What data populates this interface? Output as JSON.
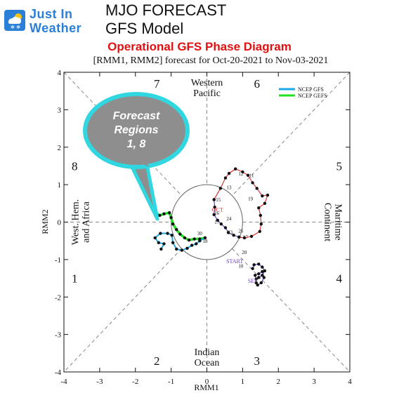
{
  "header": {
    "logo_line1": "Just In",
    "logo_line2": "Weather",
    "title_line1": "MJO FORECAST",
    "title_line2": "GFS Model",
    "subtitle": "Operational GFS Phase Diagram",
    "logo_icon": "sun-cloud-snow-icon"
  },
  "chart_data": {
    "type": "scatter",
    "title": "[RMM1, RMM2] forecast for Oct-20-2021 to Nov-03-2021",
    "xlabel": "RMM1",
    "ylabel": "RMM2",
    "xlim": [
      -4,
      4
    ],
    "ylim": [
      -4,
      4
    ],
    "x_ticks": [
      "-4",
      "-3",
      "-2",
      "-1",
      "0",
      "1",
      "2",
      "3",
      "4"
    ],
    "y_ticks": [
      "-4",
      "-3",
      "-2",
      "-1",
      "0",
      "1",
      "2",
      "3",
      "4"
    ],
    "grid": false,
    "legend_position": "top-right",
    "legend": [
      {
        "name": "NCEP GFS",
        "color": "#1aa9e6"
      },
      {
        "name": "NCEP GEFS",
        "color": "#22e022"
      }
    ],
    "phases": [
      {
        "label": "7",
        "x": -1.4,
        "y": 3.7
      },
      {
        "label": "6",
        "x": 1.4,
        "y": 3.7
      },
      {
        "label": "5",
        "x": 3.7,
        "y": 1.5
      },
      {
        "label": "4",
        "x": 3.7,
        "y": -1.5
      },
      {
        "label": "3",
        "x": 1.4,
        "y": -3.7
      },
      {
        "label": "2",
        "x": -1.4,
        "y": -3.7
      },
      {
        "label": "1",
        "x": -3.7,
        "y": -1.5
      },
      {
        "label": "8",
        "x": -3.7,
        "y": 1.5
      }
    ],
    "regions": [
      {
        "lines": [
          "Western",
          "Pacific"
        ],
        "x": 0,
        "y": 3.6,
        "rotate": 0
      },
      {
        "lines": [
          "Maritime",
          "Continent"
        ],
        "x": 3.55,
        "y": 0,
        "rotate": 90
      },
      {
        "lines": [
          "Indian",
          "Ocean"
        ],
        "x": 0,
        "y": -3.6,
        "rotate": 0
      },
      {
        "lines": [
          "West. Hem.",
          "and Africa"
        ],
        "x": -3.55,
        "y": 0,
        "rotate": -90
      }
    ],
    "observed": {
      "color": "#111111",
      "month_segments": [
        {
          "color": "#6b3fc4",
          "points": [
            [
              1.28,
              -1.24
            ],
            [
              1.32,
              -1.14
            ],
            [
              1.45,
              -1.12
            ],
            [
              1.55,
              -1.2
            ],
            [
              1.62,
              -1.3
            ],
            [
              1.55,
              -1.42
            ],
            [
              1.45,
              -1.48
            ],
            [
              1.38,
              -1.52
            ],
            [
              1.35,
              -1.42
            ],
            [
              1.45,
              -1.38
            ],
            [
              1.55,
              -1.32
            ],
            [
              1.6,
              -1.48
            ],
            [
              1.52,
              -1.62
            ],
            [
              1.42,
              -1.68
            ],
            [
              1.38,
              -1.62
            ]
          ]
        },
        {
          "color": "#e03030",
          "points": [
            [
              0.2,
              0.6
            ],
            [
              0.38,
              0.9
            ],
            [
              0.52,
              1.18
            ],
            [
              0.62,
              1.3
            ],
            [
              0.8,
              1.42
            ],
            [
              1.0,
              1.34
            ],
            [
              1.15,
              1.25
            ],
            [
              1.28,
              1.05
            ],
            [
              1.4,
              0.9
            ],
            [
              1.55,
              0.7
            ],
            [
              1.7,
              0.72
            ],
            [
              1.62,
              0.5
            ],
            [
              1.45,
              0.38
            ],
            [
              1.5,
              0.18
            ],
            [
              1.52,
              -0.05
            ],
            [
              1.48,
              -0.25
            ],
            [
              1.25,
              -0.38
            ],
            [
              1.05,
              -0.42
            ],
            [
              0.9,
              -0.4
            ]
          ]
        },
        {
          "color": "#6b3fc4",
          "points": [
            [
              0.9,
              -0.4
            ],
            [
              0.75,
              -0.35
            ],
            [
              0.6,
              -0.28
            ],
            [
              0.52,
              -0.15
            ],
            [
              0.4,
              -0.05
            ],
            [
              0.3,
              0.05
            ],
            [
              0.2,
              0.2
            ],
            [
              0.22,
              0.4
            ],
            [
              0.2,
              0.6
            ]
          ]
        }
      ],
      "day_labels": [
        {
          "text": "10",
          "x": 0.95,
          "y": -1.22
        },
        {
          "text": "12",
          "x": 0.95,
          "y": 1.25
        },
        {
          "text": "13",
          "x": 0.62,
          "y": 0.88
        },
        {
          "text": "15",
          "x": 0.32,
          "y": 0.55
        },
        {
          "text": "16",
          "x": 0.28,
          "y": 0.2
        },
        {
          "text": "17",
          "x": 0.28,
          "y": -0.05
        },
        {
          "text": "19",
          "x": 1.22,
          "y": 0.58
        },
        {
          "text": "20",
          "x": 1.05,
          "y": -0.85
        },
        {
          "text": "23",
          "x": 0.65,
          "y": -0.32
        },
        {
          "text": "24",
          "x": 0.62,
          "y": 0.05
        },
        {
          "text": "26",
          "x": 0.95,
          "y": -0.28
        },
        {
          "text": "27",
          "x": 1.08,
          "y": -0.45
        },
        {
          "text": "11",
          "x": 1.25,
          "y": 1.2
        },
        {
          "text": "18",
          "x": -0.05,
          "y": -0.55
        },
        {
          "text": "30",
          "x": -0.2,
          "y": -0.35
        }
      ],
      "month_labels": [
        {
          "text": "OCT",
          "x": 0.3,
          "y": 0.28,
          "color": "#e03030"
        },
        {
          "text": "START",
          "x": 0.78,
          "y": -1.1,
          "color": "#6b3fc4"
        },
        {
          "text": "SEP",
          "x": 1.28,
          "y": -1.62,
          "color": "#6b3fc4"
        }
      ]
    },
    "forecast": {
      "gfs": {
        "color": "#1aa9e6",
        "points": [
          [
            -0.05,
            -0.42
          ],
          [
            -0.2,
            -0.5
          ],
          [
            -0.3,
            -0.58
          ],
          [
            -0.42,
            -0.62
          ],
          [
            -0.55,
            -0.7
          ],
          [
            -0.7,
            -0.75
          ],
          [
            -0.85,
            -0.72
          ],
          [
            -0.95,
            -0.55
          ],
          [
            -0.98,
            -0.35
          ],
          [
            -1.1,
            -0.3
          ],
          [
            -1.3,
            -0.3
          ],
          [
            -1.45,
            -0.42
          ],
          [
            -1.35,
            -0.55
          ],
          [
            -1.2,
            -0.58
          ],
          [
            -1.28,
            -0.72
          ]
        ]
      },
      "gefs": {
        "color": "#22e022",
        "points": [
          [
            -0.05,
            -0.42
          ],
          [
            -0.2,
            -0.45
          ],
          [
            -0.35,
            -0.45
          ],
          [
            -0.5,
            -0.48
          ],
          [
            -0.62,
            -0.42
          ],
          [
            -0.75,
            -0.32
          ],
          [
            -0.85,
            -0.2
          ],
          [
            -0.95,
            -0.05
          ],
          [
            -1.0,
            0.12
          ],
          [
            -1.05,
            0.25
          ],
          [
            -1.2,
            0.22
          ],
          [
            -1.32,
            0.18
          ],
          [
            -1.42,
            0.25
          ]
        ]
      }
    },
    "annotation": {
      "lines": [
        "Forecast",
        "Regions",
        "1, 8"
      ],
      "fill": "#8e8e8e",
      "border": "#31d7e0"
    }
  }
}
